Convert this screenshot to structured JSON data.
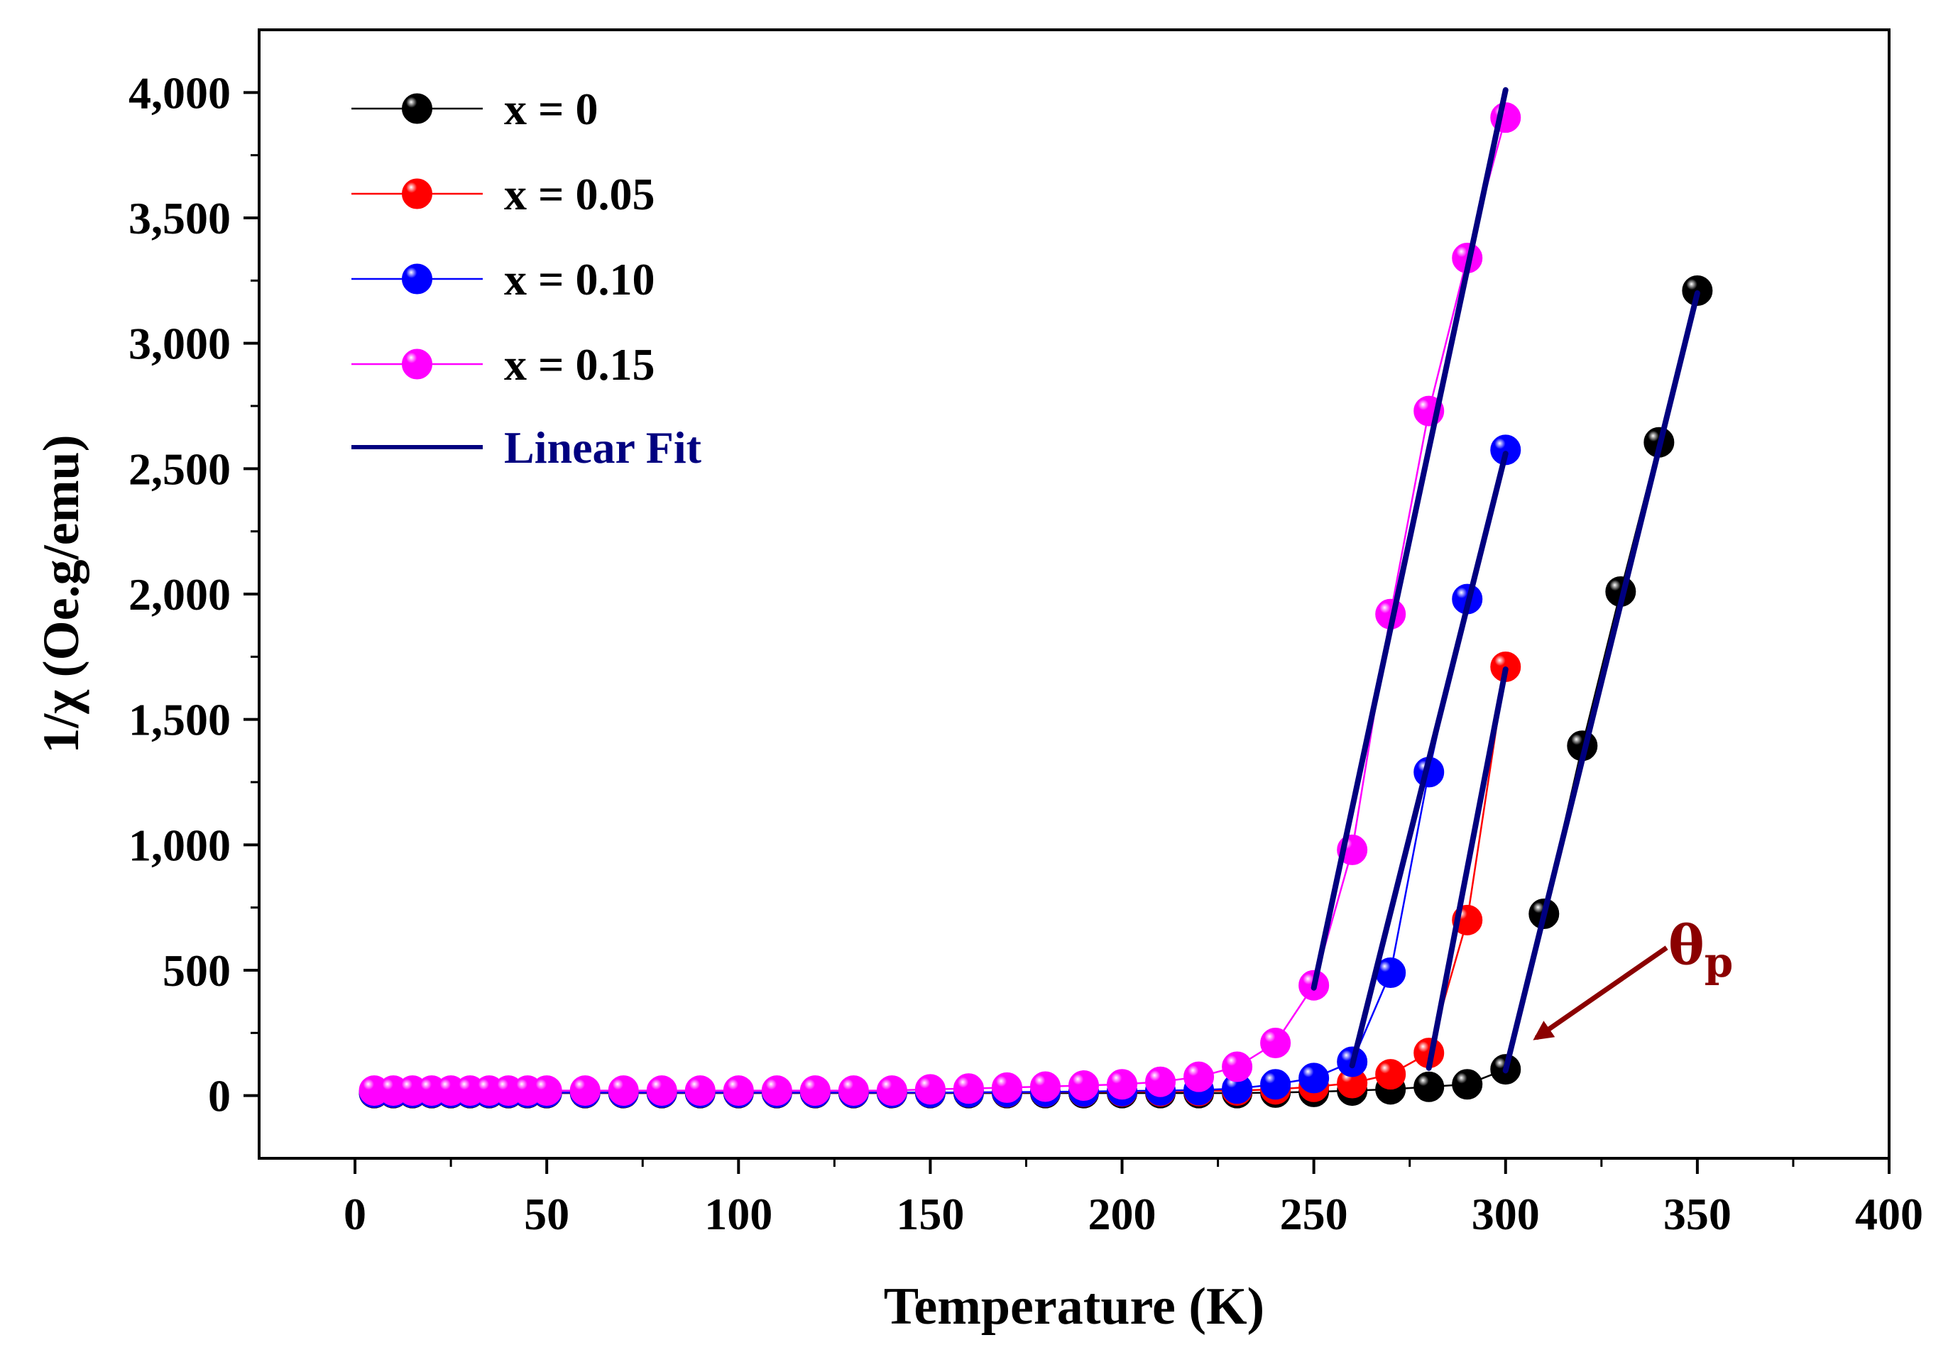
{
  "chart_data": {
    "type": "scatter",
    "xlabel": "Temperature (K)",
    "ylabel": "1/χ (Oe.g/emu)",
    "xlim": [
      -25,
      400
    ],
    "ylim": [
      -250,
      4250
    ],
    "xticks": [
      0,
      50,
      100,
      150,
      200,
      250,
      300,
      350,
      400
    ],
    "xtick_labels": [
      "0",
      "50",
      "100",
      "150",
      "200",
      "250",
      "300",
      "350",
      "400"
    ],
    "yticks": [
      0,
      500,
      1000,
      1500,
      2000,
      2500,
      3000,
      3500,
      4000
    ],
    "ytick_labels": [
      "0",
      "500",
      "1,000",
      "1,500",
      "2,000",
      "2,500",
      "3,000",
      "3,500",
      "4,000"
    ],
    "grid": false,
    "legend_position": "top-left",
    "series": [
      {
        "name": "x = 0",
        "color": "#000000",
        "x": [
          5,
          10,
          15,
          20,
          25,
          30,
          35,
          40,
          45,
          50,
          60,
          70,
          80,
          90,
          100,
          110,
          120,
          130,
          140,
          150,
          160,
          170,
          180,
          190,
          200,
          210,
          220,
          230,
          240,
          250,
          260,
          270,
          280,
          290,
          300,
          310,
          320,
          330,
          340,
          350
        ],
        "y": [
          10,
          10,
          10,
          10,
          10,
          10,
          10,
          10,
          10,
          10,
          10,
          10,
          10,
          10,
          10,
          10,
          10,
          10,
          10,
          10,
          10,
          10,
          10,
          10,
          10,
          10,
          10,
          10,
          12,
          15,
          20,
          25,
          35,
          45,
          105,
          725,
          1395,
          2010,
          2605,
          3210
        ]
      },
      {
        "name": "x = 0.05",
        "color": "#ff0000",
        "x": [
          5,
          10,
          15,
          20,
          25,
          30,
          35,
          40,
          45,
          50,
          60,
          70,
          80,
          90,
          100,
          110,
          120,
          130,
          140,
          150,
          160,
          170,
          180,
          190,
          200,
          210,
          220,
          230,
          240,
          250,
          260,
          270,
          280,
          290,
          300
        ],
        "y": [
          12,
          12,
          12,
          12,
          12,
          12,
          12,
          12,
          12,
          12,
          12,
          12,
          12,
          12,
          12,
          12,
          12,
          12,
          12,
          12,
          13,
          13,
          14,
          15,
          16,
          17,
          18,
          20,
          25,
          35,
          50,
          85,
          170,
          700,
          1710
        ]
      },
      {
        "name": "x = 0.10",
        "color": "#0000ff",
        "x": [
          5,
          10,
          15,
          20,
          25,
          30,
          35,
          40,
          45,
          50,
          60,
          70,
          80,
          90,
          100,
          110,
          120,
          130,
          140,
          150,
          160,
          170,
          180,
          190,
          200,
          210,
          220,
          230,
          240,
          250,
          260,
          270,
          280,
          290,
          300
        ],
        "y": [
          12,
          12,
          12,
          12,
          12,
          12,
          12,
          12,
          12,
          12,
          12,
          12,
          12,
          12,
          12,
          12,
          12,
          12,
          12,
          12,
          13,
          14,
          15,
          16,
          18,
          20,
          22,
          28,
          45,
          70,
          135,
          490,
          1290,
          1980,
          2575
        ]
      },
      {
        "name": "x = 0.15",
        "color": "#ff00ff",
        "x": [
          5,
          10,
          15,
          20,
          25,
          30,
          35,
          40,
          45,
          50,
          60,
          70,
          80,
          90,
          100,
          110,
          120,
          130,
          140,
          150,
          160,
          170,
          180,
          190,
          200,
          210,
          220,
          230,
          240,
          250,
          260,
          270,
          280,
          290,
          300
        ],
        "y": [
          20,
          20,
          20,
          20,
          20,
          20,
          20,
          20,
          20,
          20,
          20,
          20,
          20,
          20,
          20,
          20,
          20,
          20,
          20,
          25,
          28,
          32,
          36,
          40,
          45,
          55,
          75,
          115,
          210,
          440,
          980,
          1920,
          2730,
          3340,
          3900
        ]
      }
    ],
    "linear_fits": [
      {
        "name": "Linear Fit",
        "color": "#000080",
        "x": [
          300,
          350
        ],
        "y": [
          100,
          3200
        ]
      },
      {
        "name": "Linear Fit",
        "color": "#000080",
        "x": [
          280,
          300
        ],
        "y": [
          110,
          1700
        ]
      },
      {
        "name": "Linear Fit",
        "color": "#000080",
        "x": [
          260,
          300
        ],
        "y": [
          120,
          2560
        ]
      },
      {
        "name": "Linear Fit",
        "color": "#000080",
        "x": [
          250,
          300
        ],
        "y": [
          430,
          4010
        ]
      }
    ],
    "legend_fit_label": "Linear Fit",
    "annotation": {
      "text": "θ",
      "subscript": "p",
      "color": "#8b0000",
      "arrow_to": [
        308,
        230
      ],
      "arrow_from": [
        342,
        590
      ]
    }
  }
}
